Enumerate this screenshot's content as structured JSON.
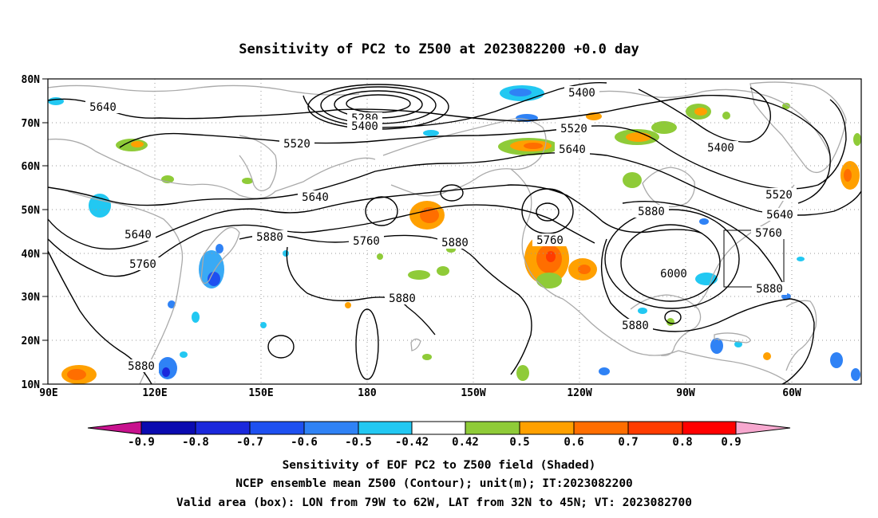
{
  "title": "Sensitivity of PC2 to Z500 at 2023082200 +0.0 day",
  "lat_labels": [
    "80N",
    "70N",
    "60N",
    "50N",
    "40N",
    "30N",
    "20N",
    "10N"
  ],
  "lon_labels": [
    "90E",
    "120E",
    "150E",
    "180",
    "150W",
    "120W",
    "90W",
    "60W"
  ],
  "contour_labels": [
    {
      "id": "c5640-w",
      "text": "5640"
    },
    {
      "id": "c5280",
      "text": "5280"
    },
    {
      "id": "c5400-n",
      "text": "5400"
    },
    {
      "id": "c5400-ne",
      "text": "5400"
    },
    {
      "id": "c5520-nw",
      "text": "5520"
    },
    {
      "id": "c5520-n",
      "text": "5520"
    },
    {
      "id": "c5640-n",
      "text": "5640"
    },
    {
      "id": "c5400-e",
      "text": "5400"
    },
    {
      "id": "c5640-c",
      "text": "5640"
    },
    {
      "id": "c5520-e",
      "text": "5520"
    },
    {
      "id": "c5640-e",
      "text": "5640"
    },
    {
      "id": "c5640-sw",
      "text": "5640"
    },
    {
      "id": "c5880-w",
      "text": "5880"
    },
    {
      "id": "c5760-c",
      "text": "5760"
    },
    {
      "id": "c5880-c",
      "text": "5880"
    },
    {
      "id": "c5760-ce",
      "text": "5760"
    },
    {
      "id": "c5880-e",
      "text": "5880"
    },
    {
      "id": "c5760-e",
      "text": "5760"
    },
    {
      "id": "c5760-w",
      "text": "5760"
    },
    {
      "id": "c6000",
      "text": "6000"
    },
    {
      "id": "c5880-se",
      "text": "5880"
    },
    {
      "id": "c5880-cs",
      "text": "5880"
    },
    {
      "id": "c5880-s",
      "text": "5880"
    },
    {
      "id": "c5880-sw",
      "text": "5880"
    }
  ],
  "colorbar": {
    "labels": [
      "-0.9",
      "-0.8",
      "-0.7",
      "-0.6",
      "-0.5",
      "-0.42",
      "0.42",
      "0.5",
      "0.6",
      "0.7",
      "0.8",
      "0.9"
    ],
    "colors": {
      "below_min": "#c8128e",
      "bins": [
        "#0a0ab0",
        "#1a28dc",
        "#1e50f0",
        "#2f82f5",
        "#39aaf5",
        "#22c8f2",
        "#ffffff",
        "#8fcb38",
        "#ffa000",
        "#ff6e00",
        "#ff3c00",
        "#ff0000"
      ],
      "above_max": "#f7a8cf"
    }
  },
  "caption": {
    "line1": "Sensitivity of EOF PC2 to Z500 field (Shaded)",
    "line2": "NCEP ensemble mean Z500 (Contour); unit(m); IT:2023082200",
    "line3": "Valid area (box): LON from 79W to 62W, LAT from 32N to 45N; VT: 2023082700"
  },
  "valid_box": {
    "lon_from": "79W",
    "lon_to": "62W",
    "lat_from": "32N",
    "lat_to": "45N"
  },
  "colors": {
    "contour": "#000000",
    "coast": "#aaaaaa",
    "grid": "#999999"
  }
}
